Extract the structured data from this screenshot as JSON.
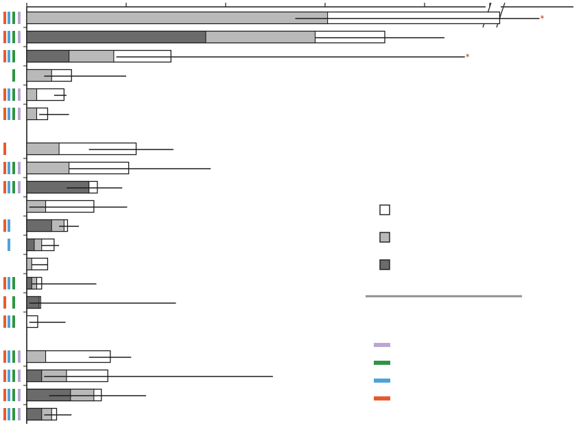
{
  "chart_data": {
    "type": "bar",
    "subtype": "stacked-horizontal-with-error-bars",
    "title": "",
    "xlabel": "",
    "ylabel": "",
    "x_axis": {
      "position": "top",
      "tick_values": [
        0,
        2,
        4,
        6,
        8,
        10
      ],
      "xlim": [
        0,
        11
      ],
      "axis_break": [
        9.2,
        9.9
      ],
      "tick_labels_visible": false
    },
    "grid": false,
    "colors": {
      "open": "#ffffff",
      "light": "#b9b9b9",
      "dark": "#6b6b6b",
      "outline": "#1a1a1a",
      "purple": "#b9a6d3",
      "green": "#2f9443",
      "blue": "#4fa3d9",
      "orange": "#e9592e",
      "divider": "#8f8f8f",
      "asterisk": "#c0392b"
    },
    "legend": {
      "placement": "right-middle",
      "fill_entries": [
        {
          "swatch": "open"
        },
        {
          "swatch": "light"
        },
        {
          "swatch": "dark"
        }
      ],
      "color_entries": [
        {
          "swatch": "purple"
        },
        {
          "swatch": "green"
        },
        {
          "swatch": "blue"
        },
        {
          "swatch": "orange"
        }
      ]
    },
    "groups": [
      {
        "bars": [
          {
            "dark": 0,
            "light": 6.05,
            "total": 10.2,
            "err": [
              5.4,
              11
            ],
            "markers": [
              "orange",
              "blue",
              "green",
              "purple"
            ],
            "asterisk": true
          },
          {
            "dark": 3.6,
            "light": 5.8,
            "total": 7.2,
            "err": [
              5.8,
              8.4
            ],
            "markers": [
              "orange",
              "blue",
              "green",
              "purple"
            ]
          },
          {
            "dark": 0.85,
            "light": 1.75,
            "total": 2.9,
            "err": [
              1.8,
              9.5
            ],
            "markers": [
              "orange",
              "blue",
              "green"
            ],
            "asterisk": true
          },
          {
            "dark": 0,
            "light": 0.5,
            "total": 0.9,
            "err": [
              0.35,
              2.0
            ],
            "markers": [
              "green"
            ]
          },
          {
            "dark": 0,
            "light": 0.2,
            "total": 0.75,
            "err": [
              0.55,
              0.8
            ],
            "markers": [
              "orange",
              "blue",
              "green",
              "purple"
            ]
          },
          {
            "dark": 0,
            "light": 0.2,
            "total": 0.42,
            "err": [
              0.25,
              0.85
            ],
            "markers": [
              "orange",
              "blue",
              "green",
              "purple"
            ]
          }
        ]
      },
      {
        "bars": [
          {
            "dark": 0,
            "light": 0.65,
            "total": 2.2,
            "err": [
              1.25,
              2.95
            ],
            "markers": [
              "orange"
            ]
          },
          {
            "dark": 0,
            "light": 0.85,
            "total": 2.05,
            "err": [
              0.85,
              3.7
            ],
            "markers": [
              "orange",
              "blue",
              "green",
              "purple"
            ]
          },
          {
            "dark": 1.25,
            "light": 1.25,
            "total": 1.42,
            "err": [
              0.8,
              1.92
            ],
            "markers": [
              "orange",
              "blue",
              "green",
              "purple"
            ]
          },
          {
            "dark": 0,
            "light": 0.38,
            "total": 1.35,
            "err": [
              0.05,
              2.02
            ],
            "markers": []
          },
          {
            "dark": 0.5,
            "light": 0.75,
            "total": 0.82,
            "err": [
              0.65,
              1.05
            ],
            "markers": [
              "orange",
              "blue"
            ]
          },
          {
            "dark": 0.15,
            "light": 0.3,
            "total": 0.55,
            "err": [
              0.3,
              0.65
            ],
            "markers": [
              "blue"
            ]
          },
          {
            "dark": 0,
            "light": 0.1,
            "total": 0.42,
            "err": [
              0.1,
              0.42
            ],
            "markers": []
          },
          {
            "dark": 0.1,
            "light": 0.2,
            "total": 0.3,
            "err": [
              0.1,
              1.4
            ],
            "markers": [
              "orange",
              "blue",
              "green"
            ]
          },
          {
            "dark": 0.25,
            "light": 0.25,
            "total": 0.28,
            "err": [
              0.05,
              3.0
            ],
            "markers": [
              "orange",
              "green"
            ]
          },
          {
            "dark": 0,
            "light": 0,
            "total": 0.22,
            "err": [
              0.05,
              0.78
            ],
            "markers": [
              "orange",
              "blue",
              "green"
            ]
          }
        ]
      },
      {
        "bars": [
          {
            "dark": 0,
            "light": 0.38,
            "total": 1.68,
            "err": [
              1.25,
              2.1
            ],
            "markers": [
              "orange",
              "blue",
              "green",
              "purple"
            ]
          },
          {
            "dark": 0.3,
            "light": 0.8,
            "total": 1.63,
            "err": [
              0.35,
              4.95
            ],
            "markers": [
              "orange",
              "blue",
              "green",
              "purple"
            ]
          },
          {
            "dark": 0.88,
            "light": 1.35,
            "total": 1.5,
            "err": [
              0.45,
              2.4
            ],
            "markers": [
              "orange",
              "blue",
              "green",
              "purple"
            ]
          },
          {
            "dark": 0.3,
            "light": 0.5,
            "total": 0.6,
            "err": [
              0.35,
              0.9
            ],
            "markers": [
              "orange",
              "blue",
              "green",
              "purple"
            ]
          }
        ]
      }
    ]
  }
}
